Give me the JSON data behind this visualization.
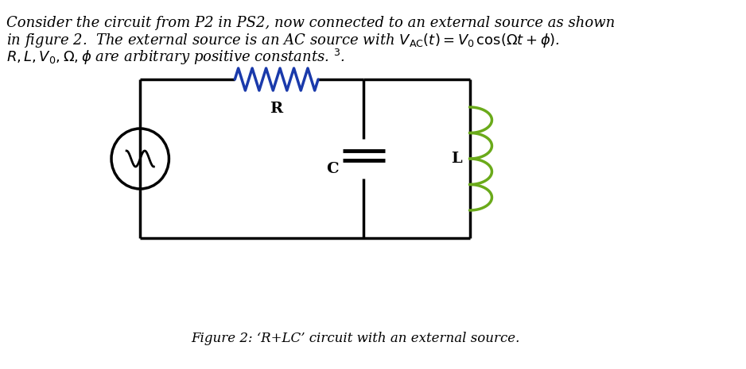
{
  "bg_color": "#ffffff",
  "text_color": "#000000",
  "resistor_color": "#1a3aab",
  "inductor_color": "#6aaa1a",
  "wire_color": "#000000",
  "line_width": 2.5,
  "header_text_line1": "Consider the circuit from P2 in PS2, now connected to an external source as shown",
  "header_text_line2": "in figure 2.  The external source is an AC source with $V_{\\mathrm{AC}}(t) = V_0\\,\\cos(\\Omega t + \\phi)$.",
  "header_text_line3": "$R, L, V_0, \\Omega, \\phi$ are arbitrary positive constants. ${}^3$.",
  "caption": "Figure 2: \\textquoteleft R+LC\\textquoteright\\ circuit with an external source.",
  "caption_plain": "Figure 2: ‘R+LC’ circuit with an external source.",
  "label_R": "R",
  "label_C": "C",
  "label_L": "L",
  "font_size_header": 13,
  "font_size_labels": 13,
  "font_size_caption": 12
}
